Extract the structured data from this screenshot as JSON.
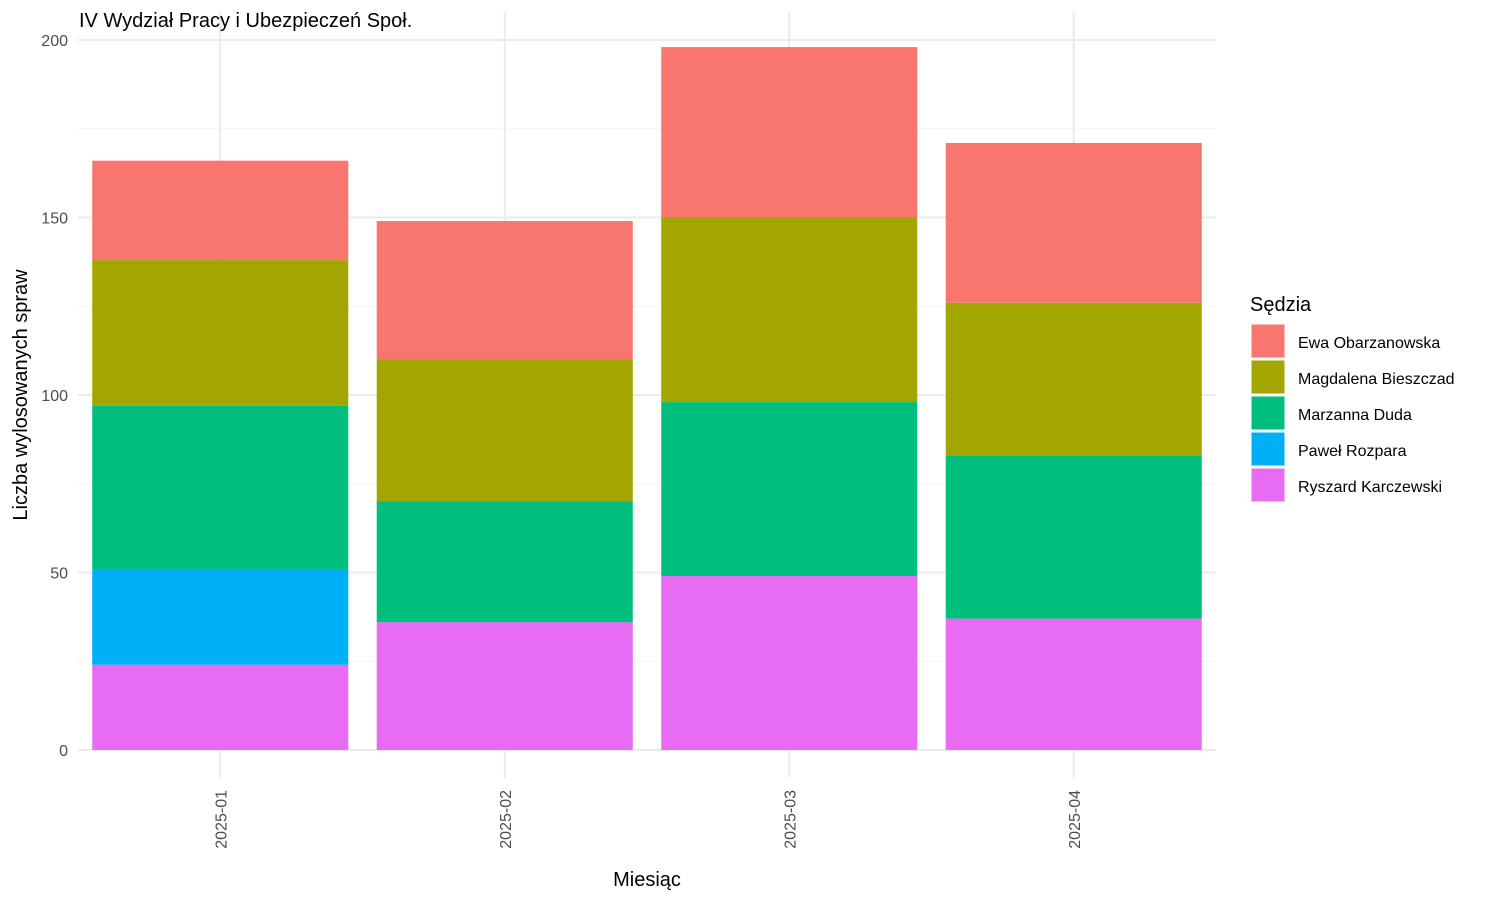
{
  "chart_data": {
    "type": "bar",
    "stacked": true,
    "title": "IV Wydział Pracy i Ubezpieczeń Społ.",
    "xlabel": "Miesiąc",
    "ylabel": "Liczba wylosowanych spraw",
    "categories": [
      "2025-01",
      "2025-02",
      "2025-03",
      "2025-04"
    ],
    "ylim": [
      0,
      205
    ],
    "yticks": [
      0,
      50,
      100,
      150,
      200
    ],
    "grid": true,
    "legend_title": "Sędzia",
    "legend_position": "right",
    "series": [
      {
        "name": "Ewa Obarzanowska",
        "color": "#F8766D",
        "values": [
          28,
          39,
          48,
          45
        ]
      },
      {
        "name": "Magdalena Bieszczad",
        "color": "#A3A500",
        "values": [
          41,
          40,
          52,
          43
        ]
      },
      {
        "name": "Marzanna Duda",
        "color": "#00BF7D",
        "values": [
          46,
          34,
          49,
          46
        ]
      },
      {
        "name": "Paweł Rozpara",
        "color": "#00B0F6",
        "values": [
          27,
          0,
          0,
          0
        ]
      },
      {
        "name": "Ryszard Karczewski",
        "color": "#E76BF3",
        "values": [
          24,
          36,
          49,
          37
        ]
      }
    ]
  }
}
